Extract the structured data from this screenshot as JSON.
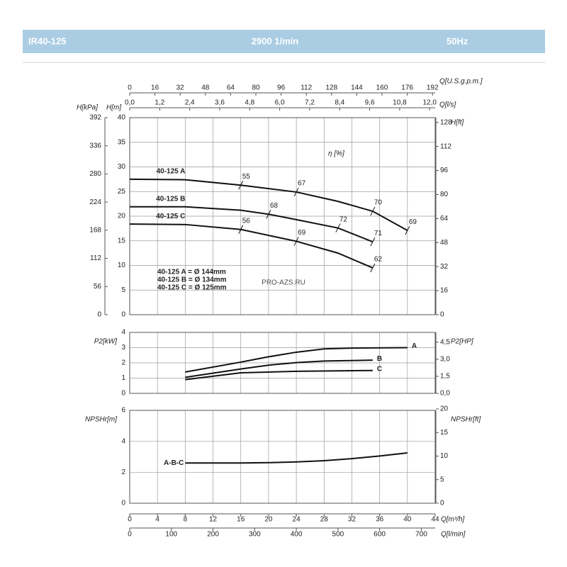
{
  "header": {
    "title": "IR40-125",
    "speed": "2900 1/min",
    "frequency": "50Hz"
  },
  "watermark": "PRO-AZS.RU",
  "chart_data": [
    {
      "type": "line",
      "ylabel": "H[m]",
      "xlim": [
        0,
        44
      ],
      "xticks": [
        0,
        4,
        8,
        12,
        16,
        20,
        24,
        28,
        32,
        36,
        40,
        44
      ],
      "ylim": [
        0,
        40
      ],
      "yticks": [
        0,
        5,
        10,
        15,
        20,
        25,
        30,
        35,
        40
      ],
      "y_kpa": {
        "label": "H[kPa]",
        "lim": [
          0,
          392
        ],
        "ticks": [
          0,
          56,
          112,
          168,
          224,
          280,
          336,
          392
        ]
      },
      "y2label": "H[ft]",
      "y2lim": [
        0,
        131.2
      ],
      "y2ticks": [
        0,
        16,
        32,
        48,
        64,
        80,
        96,
        112,
        128
      ],
      "top_axes": [
        {
          "label": "Q[U.S.g.p.m.]",
          "lim": [
            0,
            193.7
          ],
          "ticks": [
            0,
            16,
            32,
            48,
            64,
            80,
            96,
            112,
            128,
            144,
            160,
            176,
            192
          ]
        },
        {
          "label": "Q[l/s]",
          "lim": [
            0,
            12.22
          ],
          "ticks": [
            {
              "value": 0,
              "label": "0,0"
            },
            {
              "value": 1.2,
              "label": "1,2"
            },
            {
              "value": 2.4,
              "label": "2,4"
            },
            {
              "value": 3.6,
              "label": "3,6"
            },
            {
              "value": 4.8,
              "label": "4,8"
            },
            {
              "value": 6,
              "label": "6,0"
            },
            {
              "value": 7.2,
              "label": "7,2"
            },
            {
              "value": 8.4,
              "label": "8,4"
            },
            {
              "value": 9.6,
              "label": "9,6"
            },
            {
              "value": 10.8,
              "label": "10,8"
            },
            {
              "value": 12,
              "label": "12,0"
            }
          ]
        }
      ],
      "efficiency_label": "η [%]",
      "series": [
        {
          "name": "40-125 A",
          "color": "#111111",
          "x": [
            0,
            8,
            16,
            24,
            30,
            35,
            40
          ],
          "values": [
            27.5,
            27.4,
            26.3,
            24.9,
            23.0,
            21.0,
            17.1
          ],
          "efficiency": {
            "x": [
              16,
              24,
              35,
              40
            ],
            "values": [
              55,
              67,
              70,
              69
            ]
          }
        },
        {
          "name": "40-125 B",
          "color": "#111111",
          "x": [
            0,
            8,
            16,
            20,
            24,
            30,
            35
          ],
          "values": [
            21.9,
            21.9,
            21.2,
            20.4,
            19.3,
            17.6,
            14.8
          ],
          "efficiency": {
            "x": [
              20,
              30,
              35
            ],
            "values": [
              68,
              72,
              71
            ]
          }
        },
        {
          "name": "40-125 C",
          "color": "#111111",
          "x": [
            0,
            8,
            16,
            24,
            30,
            35
          ],
          "values": [
            18.4,
            18.3,
            17.3,
            14.9,
            12.5,
            9.5
          ],
          "efficiency": {
            "x": [
              16,
              24,
              35
            ],
            "values": [
              56,
              69,
              62
            ]
          }
        }
      ],
      "diameters": [
        "40-125 A = Ø 144mm",
        "40-125 B = Ø 134mm",
        "40-125 C = Ø 125mm"
      ]
    },
    {
      "type": "line",
      "ylabel": "P2[kW]",
      "xlim": [
        0,
        44
      ],
      "xticks": [
        0,
        4,
        8,
        12,
        16,
        20,
        24,
        28,
        32,
        36,
        40,
        44
      ],
      "ylim": [
        0,
        4
      ],
      "yticks": [
        0,
        1,
        2,
        3,
        4
      ],
      "y2label": "P2[HP]",
      "y2lim": [
        0,
        5.364
      ],
      "y2ticks": [
        {
          "value": 0,
          "label": "0,0"
        },
        {
          "value": 1.5,
          "label": "1,5"
        },
        {
          "value": 3,
          "label": "3,0"
        },
        {
          "value": 4.5,
          "label": "4,5"
        }
      ],
      "series": [
        {
          "name": "A",
          "color": "#111111",
          "x": [
            8,
            16,
            20,
            24,
            28,
            32,
            40
          ],
          "values": [
            1.4,
            2.05,
            2.4,
            2.7,
            2.92,
            2.97,
            3.0
          ]
        },
        {
          "name": "B",
          "color": "#111111",
          "x": [
            8,
            16,
            20,
            24,
            28,
            35
          ],
          "values": [
            1.05,
            1.6,
            1.85,
            2.02,
            2.12,
            2.18
          ]
        },
        {
          "name": "C",
          "color": "#111111",
          "x": [
            8,
            16,
            24,
            35
          ],
          "values": [
            0.9,
            1.35,
            1.45,
            1.5
          ]
        }
      ]
    },
    {
      "type": "line",
      "ylabel": "NPSHr[m]",
      "xlabel": "Q[m³/h]",
      "xlim": [
        0,
        44
      ],
      "xticks": [
        0,
        4,
        8,
        12,
        16,
        20,
        24,
        28,
        32,
        36,
        40,
        44
      ],
      "ylim": [
        0,
        6
      ],
      "yticks": [
        0,
        2,
        4,
        6
      ],
      "y2label": "NPSHr[ft]",
      "y2lim": [
        0,
        19.7
      ],
      "y2ticks": [
        0,
        5,
        10,
        15,
        20
      ],
      "x2": {
        "label": "Q[l/min]",
        "lim": [
          0,
          733.3
        ],
        "ticks": [
          0,
          100,
          200,
          300,
          400,
          500,
          600,
          700
        ]
      },
      "series": [
        {
          "name": "A-B-C",
          "color": "#111111",
          "x": [
            8,
            16,
            20,
            24,
            28,
            32,
            36,
            40
          ],
          "values": [
            2.6,
            2.6,
            2.62,
            2.67,
            2.75,
            2.88,
            3.05,
            3.25
          ]
        }
      ]
    }
  ]
}
